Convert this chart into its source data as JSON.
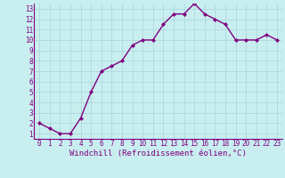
{
  "x": [
    0,
    1,
    2,
    3,
    4,
    5,
    6,
    7,
    8,
    9,
    10,
    11,
    12,
    13,
    14,
    15,
    16,
    17,
    18,
    19,
    20,
    21,
    22,
    23
  ],
  "y": [
    2.0,
    1.5,
    1.0,
    1.0,
    2.5,
    5.0,
    7.0,
    7.5,
    8.0,
    9.5,
    10.0,
    10.0,
    11.5,
    12.5,
    12.5,
    13.5,
    12.5,
    12.0,
    11.5,
    10.0,
    10.0,
    10.0,
    10.5,
    10.0
  ],
  "xlabel": "Windchill (Refroidissement éolien,°C)",
  "line_color": "#800080",
  "marker": "D",
  "marker_size": 2.0,
  "bg_color": "#c8eef0",
  "grid_color": "#b0d8dc",
  "xlim": [
    -0.5,
    23.5
  ],
  "ylim": [
    0.5,
    13.5
  ],
  "yticks": [
    1,
    2,
    3,
    4,
    5,
    6,
    7,
    8,
    9,
    10,
    11,
    12,
    13
  ],
  "xticks": [
    0,
    1,
    2,
    3,
    4,
    5,
    6,
    7,
    8,
    9,
    10,
    11,
    12,
    13,
    14,
    15,
    16,
    17,
    18,
    19,
    20,
    21,
    22,
    23
  ],
  "tick_fontsize": 5.5,
  "xlabel_fontsize": 6.5,
  "line_width": 1.0,
  "text_color": "#800080"
}
